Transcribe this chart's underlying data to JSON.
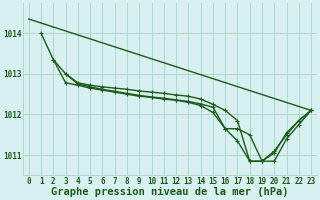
{
  "background_color": "#d8f0f0",
  "grid_color": "#b0d8cc",
  "line_color": "#1a5c1a",
  "title": "Graphe pression niveau de la mer (hPa)",
  "xlim": [
    -0.5,
    23.5
  ],
  "ylim": [
    1010.5,
    1014.75
  ],
  "yticks": [
    1011,
    1012,
    1013,
    1014
  ],
  "xticks": [
    0,
    1,
    2,
    3,
    4,
    5,
    6,
    7,
    8,
    9,
    10,
    11,
    12,
    13,
    14,
    15,
    16,
    17,
    18,
    19,
    20,
    21,
    22,
    23
  ],
  "series": [
    {
      "x": [
        0,
        23
      ],
      "y": [
        1014.35,
        1012.1
      ],
      "marker": null,
      "linewidth": 1.0
    },
    {
      "x": [
        1,
        2,
        3,
        4,
        5,
        6,
        7,
        8,
        9,
        10,
        11,
        12,
        13,
        14,
        15,
        16,
        17,
        18,
        19,
        20,
        21,
        22,
        23
      ],
      "y": [
        1014.0,
        1013.35,
        1013.0,
        1012.78,
        1012.72,
        1012.68,
        1012.65,
        1012.62,
        1012.58,
        1012.55,
        1012.52,
        1012.48,
        1012.45,
        1012.38,
        1012.25,
        1012.1,
        1011.85,
        1010.85,
        1010.85,
        1011.1,
        1011.5,
        1011.85,
        1012.1
      ],
      "marker": "+",
      "linewidth": 1.0
    },
    {
      "x": [
        2,
        3,
        4,
        5,
        6,
        7,
        8,
        9,
        10,
        11,
        12,
        13,
        14,
        15,
        16,
        17,
        18,
        19,
        20,
        21,
        22,
        23
      ],
      "y": [
        1013.35,
        1012.78,
        1012.72,
        1012.65,
        1012.6,
        1012.55,
        1012.5,
        1012.45,
        1012.42,
        1012.38,
        1012.35,
        1012.3,
        1012.22,
        1012.05,
        1011.65,
        1011.35,
        1010.85,
        1010.85,
        1011.05,
        1011.55,
        1011.85,
        1012.1
      ],
      "marker": "+",
      "linewidth": 1.0
    },
    {
      "x": [
        3,
        4,
        5,
        6,
        7,
        8,
        9,
        10,
        11,
        12,
        13,
        14,
        15,
        16,
        17,
        18,
        19,
        20,
        21,
        22,
        23
      ],
      "y": [
        1013.0,
        1012.75,
        1012.68,
        1012.62,
        1012.57,
        1012.52,
        1012.47,
        1012.43,
        1012.4,
        1012.36,
        1012.32,
        1012.26,
        1012.18,
        1011.65,
        1011.65,
        1011.5,
        1010.85,
        1010.85,
        1011.4,
        1011.75,
        1012.1
      ],
      "marker": "+",
      "linewidth": 1.0
    }
  ],
  "title_fontsize": 7.5,
  "tick_fontsize": 5.5,
  "title_color": "#1a5c1a",
  "tick_color": "#1a5c1a"
}
